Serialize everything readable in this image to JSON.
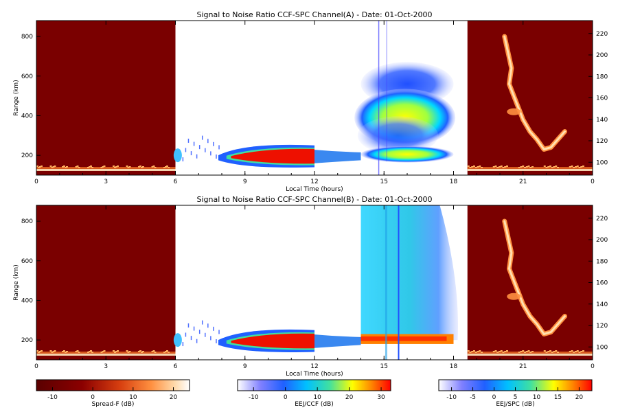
{
  "chart_data": [
    {
      "type": "heatmap",
      "title": "Signal to Noise Ratio CCF-SPC Channel(A) - Date: 01-Oct-2000",
      "xlabel": "Local Time (hours)",
      "ylabel": "Range (km)",
      "x_ticks": [
        "0",
        "3",
        "6",
        "9",
        "12",
        "15",
        "18",
        "21",
        "0"
      ],
      "xlim": [
        0,
        24
      ],
      "ylim": [
        100,
        880
      ],
      "y_ticks": [
        "200",
        "400",
        "600",
        "800"
      ],
      "y2lim": [
        88,
        232
      ],
      "y2_ticks": [
        "100",
        "120",
        "140",
        "160",
        "180",
        "200",
        "220"
      ],
      "segments": [
        {
          "x": [
            0,
            6
          ],
          "scale": "Spread-F",
          "content": "night background with bottom echo layer"
        },
        {
          "x": [
            6,
            12
          ],
          "scale": "EEJ/CCF",
          "content": "EEJ echoes around 150-250 km, strongest 9-12 h"
        },
        {
          "x": [
            12,
            14
          ],
          "scale": "EEJ/SPC",
          "content": "weak echo near 200 km"
        },
        {
          "x": [
            14,
            18
          ],
          "scale": "EEJ/SPC",
          "content": "layers near 200, 400 and 550 km, strongest around 380 km"
        },
        {
          "x": [
            18.6,
            24
          ],
          "scale": "Spread-F",
          "content": "spread-F plume 20-23 h"
        }
      ]
    },
    {
      "type": "heatmap",
      "title": "Signal to Noise Ratio CCF-SPC Channel(B) - Date: 01-Oct-2000",
      "xlabel": "Local Time (hours)",
      "ylabel": "Range (km)",
      "x_ticks": [
        "0",
        "3",
        "6",
        "9",
        "12",
        "15",
        "18",
        "21",
        "0"
      ],
      "xlim": [
        0,
        24
      ],
      "ylim": [
        100,
        880
      ],
      "y_ticks": [
        "200",
        "400",
        "600",
        "800"
      ],
      "y2lim": [
        88,
        232
      ],
      "y2_ticks": [
        "100",
        "120",
        "140",
        "160",
        "180",
        "200",
        "220"
      ],
      "segments": [
        {
          "x": [
            0,
            6
          ],
          "scale": "Spread-F",
          "content": "night background with bottom echo layer"
        },
        {
          "x": [
            6,
            12
          ],
          "scale": "EEJ/CCF",
          "content": "EEJ echoes around 150-250 km, strongest 9-12 h"
        },
        {
          "x": [
            12,
            14
          ],
          "scale": "EEJ/SPC",
          "content": "weak echo near 200 km"
        },
        {
          "x": [
            14,
            18
          ],
          "scale": "EEJ/SPC",
          "content": "broad echo region, strongest near 200 km"
        },
        {
          "x": [
            18.6,
            24
          ],
          "scale": "Spread-F",
          "content": "spread-F plume 20-23 h"
        }
      ]
    }
  ],
  "colorbars": [
    {
      "label": "Spread-F (dB)",
      "range": [
        -14,
        24
      ],
      "ticks": [
        "-10",
        "0",
        "10",
        "20"
      ],
      "colormap": "red-temperature"
    },
    {
      "label": "EEJ/CCF (dB)",
      "range": [
        -15,
        33
      ],
      "ticks": [
        "-10",
        "0",
        "10",
        "20",
        "30"
      ],
      "colormap": "rainbow"
    },
    {
      "label": "EEJ/SPC (dB)",
      "range": [
        -13,
        23
      ],
      "ticks": [
        "-10",
        "-5",
        "0",
        "5",
        "10",
        "15",
        "20"
      ],
      "colormap": "rainbow"
    }
  ]
}
